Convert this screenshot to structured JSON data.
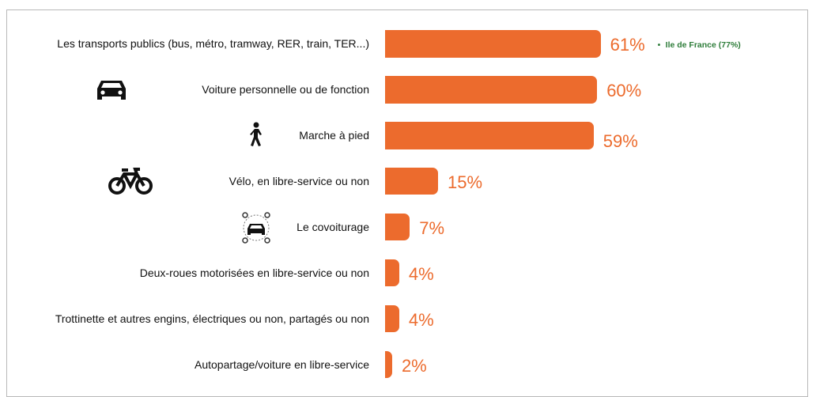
{
  "chart_data": {
    "type": "bar",
    "orientation": "horizontal",
    "categories": [
      "Les transports publics (bus, métro, tramway, RER, train, TER...)",
      "Voiture personnelle ou de fonction",
      "Marche à pied",
      "Vélo, en libre-service ou non",
      "Le covoiturage",
      "Deux-roues motorisées en libre-service ou non",
      "Trottinette et autres engins, électriques ou non, partagés ou non",
      "Autopartage/voiture en libre-service"
    ],
    "values": [
      61,
      60,
      59,
      15,
      7,
      4,
      4,
      2
    ],
    "value_labels": [
      "61%",
      "60%",
      "59%",
      "15%",
      "7%",
      "4%",
      "4%",
      "2%"
    ],
    "color": "#ec6b2d",
    "annotations": [
      {
        "text": "Ile de France (77%)",
        "color": "#2e7d3a",
        "category": 0
      }
    ]
  }
}
